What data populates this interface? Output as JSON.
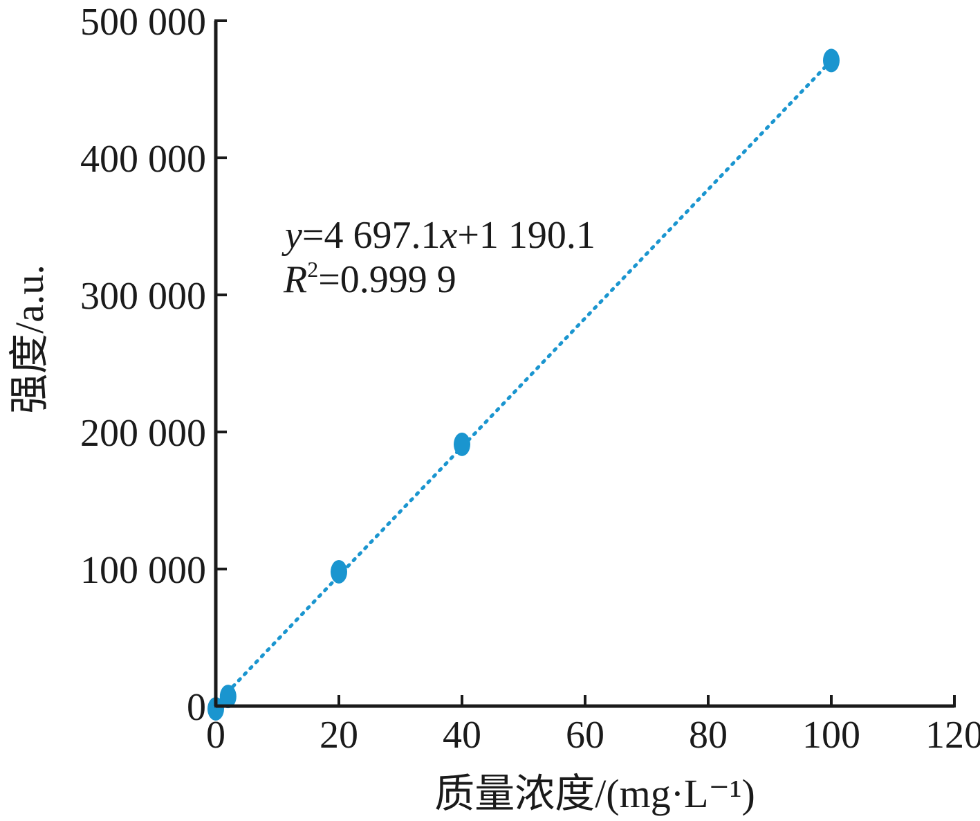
{
  "chart_data": {
    "type": "scatter",
    "title": "",
    "xlabel": "质量浓度/(mg·L⁻¹)",
    "ylabel": "强度/a.u.",
    "xlim": [
      0,
      120
    ],
    "ylim": [
      0,
      500000
    ],
    "x_ticks": [
      0,
      20,
      40,
      60,
      80,
      100,
      120
    ],
    "y_ticks": [
      0,
      100000,
      200000,
      300000,
      400000,
      500000
    ],
    "x_tick_labels": [
      "0",
      "20",
      "40",
      "60",
      "80",
      "100",
      "120"
    ],
    "y_tick_labels": [
      "0",
      "100 000",
      "200 000",
      "300 000",
      "400 000",
      "500 000"
    ],
    "grid": false,
    "legend": "none",
    "series": [
      {
        "color": "#1a95cf",
        "marker": "circle",
        "x": [
          0,
          2,
          20,
          40,
          100
        ],
        "y": [
          -2000,
          7000,
          98000,
          191000,
          471000
        ]
      }
    ],
    "trendline": {
      "type": "linear",
      "style": "dotted",
      "color": "#1a95cf",
      "slope": 4697.1,
      "intercept": 1190.1,
      "x_range": [
        0,
        100
      ]
    },
    "annotations": {
      "equation": {
        "y_var": "y",
        "eq_part1": "=4 697.1",
        "x_var": "x",
        "eq_part2": "+1 190.1"
      },
      "r_squared": {
        "r_var": "R",
        "exponent": "2",
        "value": "=0.999 9"
      }
    },
    "colors": {
      "axis": "#1a1a1a",
      "series": "#1a95cf"
    }
  }
}
